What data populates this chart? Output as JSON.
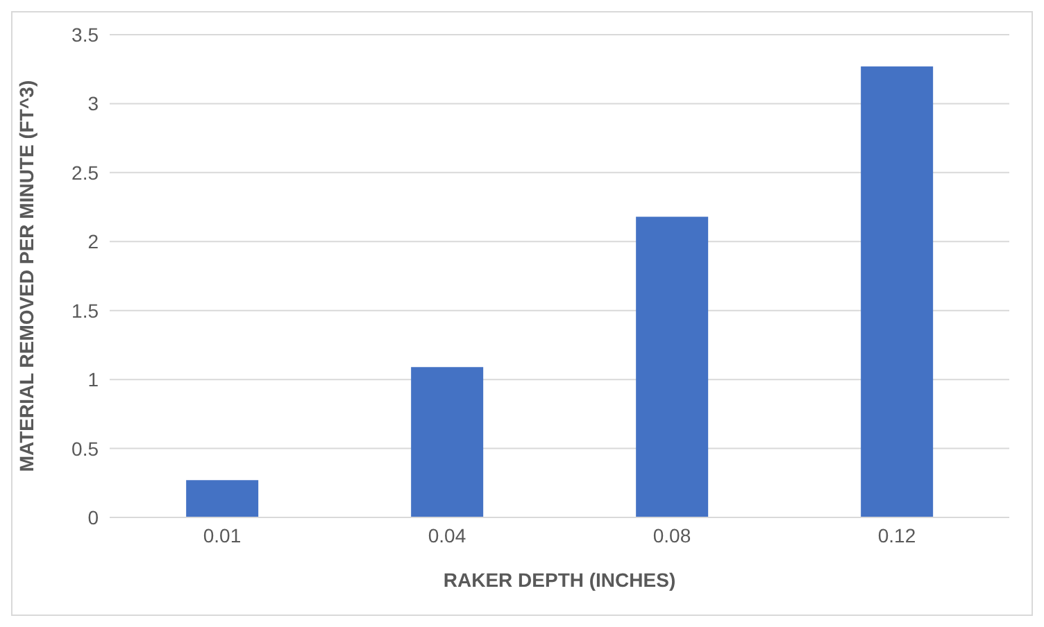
{
  "chart_data": {
    "type": "bar",
    "xlabel": "RAKER DEPTH (INCHES)",
    "ylabel": "MATERIAL REMOVED PER MINUTE (FT^3)",
    "categories": [
      "0.01",
      "0.04",
      "0.08",
      "0.12"
    ],
    "values": [
      0.27,
      1.09,
      2.18,
      3.27
    ],
    "color": "#4472c4",
    "ylim": [
      0,
      3.5
    ],
    "yticks": [
      0,
      {
        "value": 0.5,
        "label": "0.5"
      },
      1,
      {
        "value": 1.5,
        "label": "1.5"
      },
      2,
      {
        "value": 2.5,
        "label": "2.5"
      },
      3,
      {
        "value": 3.5,
        "label": "3.5"
      }
    ],
    "grid": "y"
  }
}
